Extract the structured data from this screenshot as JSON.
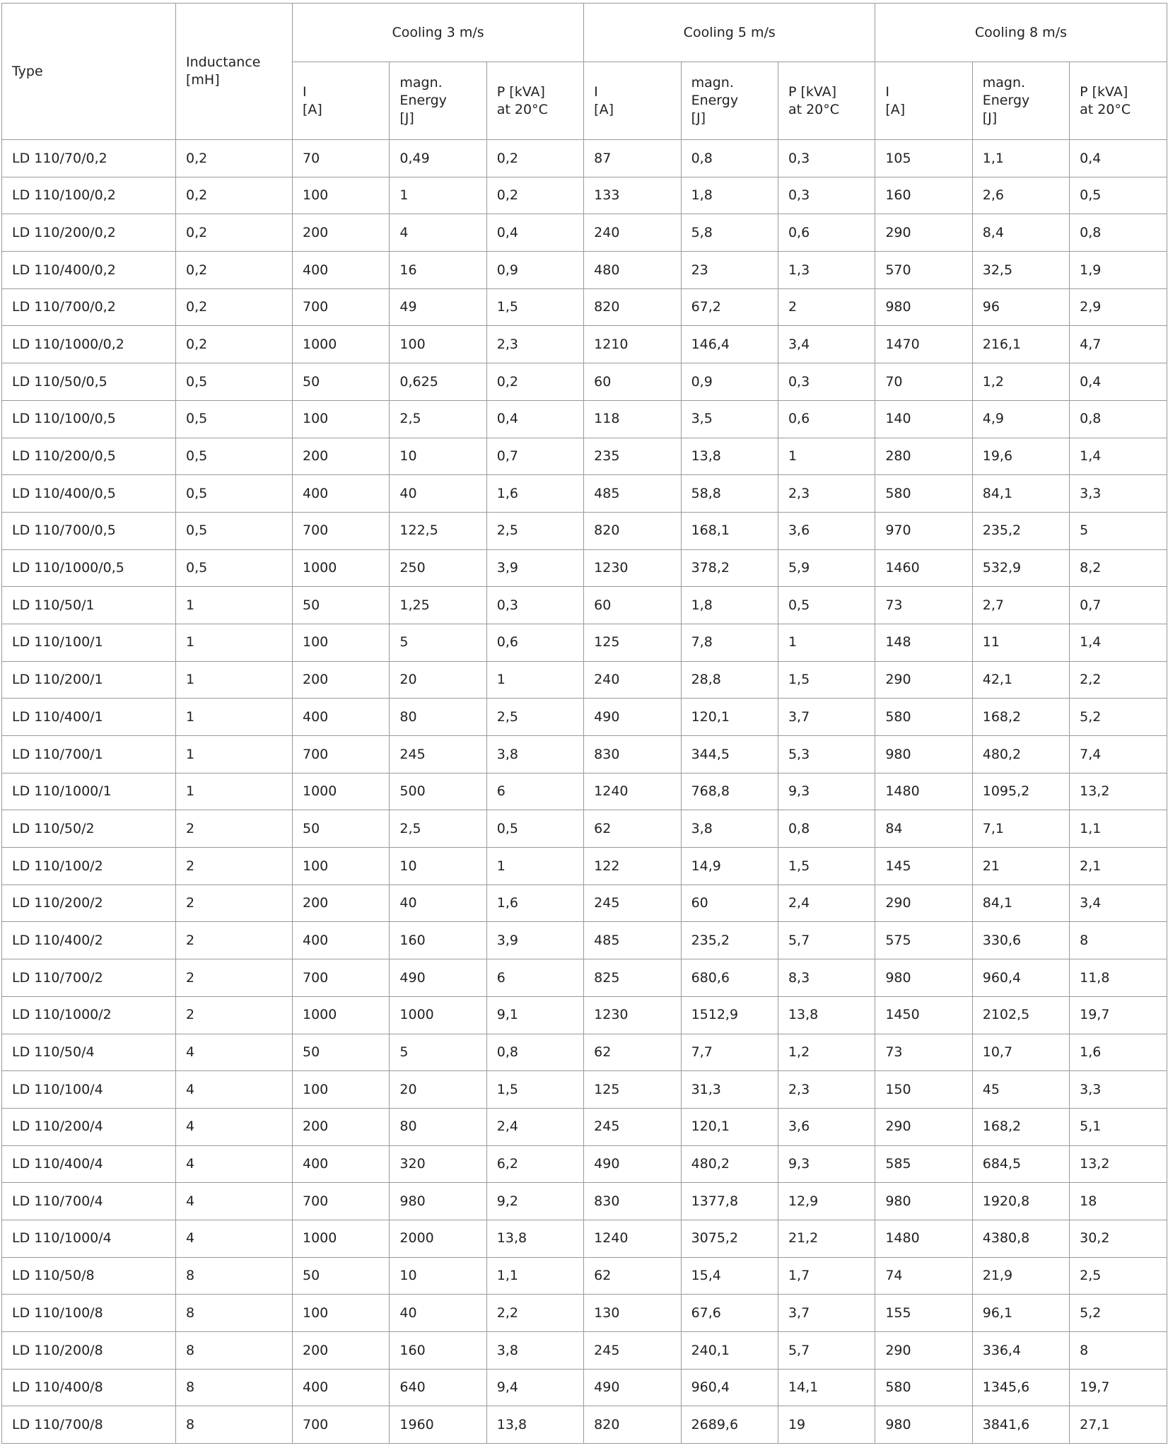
{
  "table": {
    "header": {
      "type": "Type",
      "inductance": "Inductance\n[mH]",
      "groups": [
        {
          "title": "Cooling 3 m/s",
          "columns": [
            "I\n[A]",
            "magn.\nEnergy\n[J]",
            "P [kVA]\nat 20°C"
          ]
        },
        {
          "title": "Cooling 5 m/s",
          "columns": [
            "I\n[A]",
            "magn.\nEnergy\n[J]",
            "P [kVA]\nat 20°C"
          ]
        },
        {
          "title": "Cooling 8 m/s",
          "columns": [
            "I\n[A]",
            "magn.\nEnergy\n[J]",
            "P [kVA]\nat 20°C"
          ]
        }
      ]
    },
    "rows": [
      [
        "LD 110/70/0,2",
        "0,2",
        "70",
        "0,49",
        "0,2",
        "87",
        "0,8",
        "0,3",
        "105",
        "1,1",
        "0,4"
      ],
      [
        "LD 110/100/0,2",
        "0,2",
        "100",
        "1",
        "0,2",
        "133",
        "1,8",
        "0,3",
        "160",
        "2,6",
        "0,5"
      ],
      [
        "LD 110/200/0,2",
        "0,2",
        "200",
        "4",
        "0,4",
        "240",
        "5,8",
        "0,6",
        "290",
        "8,4",
        "0,8"
      ],
      [
        "LD 110/400/0,2",
        "0,2",
        "400",
        "16",
        "0,9",
        "480",
        "23",
        "1,3",
        "570",
        "32,5",
        "1,9"
      ],
      [
        "LD 110/700/0,2",
        "0,2",
        "700",
        "49",
        "1,5",
        "820",
        "67,2",
        "2",
        "980",
        "96",
        "2,9"
      ],
      [
        "LD 110/1000/0,2",
        "0,2",
        "1000",
        "100",
        "2,3",
        "1210",
        "146,4",
        "3,4",
        "1470",
        "216,1",
        "4,7"
      ],
      [
        "LD 110/50/0,5",
        "0,5",
        "50",
        "0,625",
        "0,2",
        "60",
        "0,9",
        "0,3",
        "70",
        "1,2",
        "0,4"
      ],
      [
        "LD 110/100/0,5",
        "0,5",
        "100",
        "2,5",
        "0,4",
        "118",
        "3,5",
        "0,6",
        "140",
        "4,9",
        "0,8"
      ],
      [
        "LD 110/200/0,5",
        "0,5",
        "200",
        "10",
        "0,7",
        "235",
        "13,8",
        "1",
        "280",
        "19,6",
        "1,4"
      ],
      [
        "LD 110/400/0,5",
        "0,5",
        "400",
        "40",
        "1,6",
        "485",
        "58,8",
        "2,3",
        "580",
        "84,1",
        "3,3"
      ],
      [
        "LD 110/700/0,5",
        "0,5",
        "700",
        "122,5",
        "2,5",
        "820",
        "168,1",
        "3,6",
        "970",
        "235,2",
        "5"
      ],
      [
        "LD 110/1000/0,5",
        "0,5",
        "1000",
        "250",
        "3,9",
        "1230",
        "378,2",
        "5,9",
        "1460",
        "532,9",
        "8,2"
      ],
      [
        "LD 110/50/1",
        "1",
        "50",
        "1,25",
        "0,3",
        "60",
        "1,8",
        "0,5",
        "73",
        "2,7",
        "0,7"
      ],
      [
        "LD 110/100/1",
        "1",
        "100",
        "5",
        "0,6",
        "125",
        "7,8",
        "1",
        "148",
        "11",
        "1,4"
      ],
      [
        "LD 110/200/1",
        "1",
        "200",
        "20",
        "1",
        "240",
        "28,8",
        "1,5",
        "290",
        "42,1",
        "2,2"
      ],
      [
        "LD 110/400/1",
        "1",
        "400",
        "80",
        "2,5",
        "490",
        "120,1",
        "3,7",
        "580",
        "168,2",
        "5,2"
      ],
      [
        "LD 110/700/1",
        "1",
        "700",
        "245",
        "3,8",
        "830",
        "344,5",
        "5,3",
        "980",
        "480,2",
        "7,4"
      ],
      [
        "LD 110/1000/1",
        "1",
        "1000",
        "500",
        "6",
        "1240",
        "768,8",
        "9,3",
        "1480",
        "1095,2",
        "13,2"
      ],
      [
        "LD 110/50/2",
        "2",
        "50",
        "2,5",
        "0,5",
        "62",
        "3,8",
        "0,8",
        "84",
        "7,1",
        "1,1"
      ],
      [
        "LD 110/100/2",
        "2",
        "100",
        "10",
        "1",
        "122",
        "14,9",
        "1,5",
        "145",
        "21",
        "2,1"
      ],
      [
        "LD 110/200/2",
        "2",
        "200",
        "40",
        "1,6",
        "245",
        "60",
        "2,4",
        "290",
        "84,1",
        "3,4"
      ],
      [
        "LD 110/400/2",
        "2",
        "400",
        "160",
        "3,9",
        "485",
        "235,2",
        "5,7",
        "575",
        "330,6",
        "8"
      ],
      [
        "LD 110/700/2",
        "2",
        "700",
        "490",
        "6",
        "825",
        "680,6",
        "8,3",
        "980",
        "960,4",
        "11,8"
      ],
      [
        "LD 110/1000/2",
        "2",
        "1000",
        "1000",
        "9,1",
        "1230",
        "1512,9",
        "13,8",
        "1450",
        "2102,5",
        "19,7"
      ],
      [
        "LD 110/50/4",
        "4",
        "50",
        "5",
        "0,8",
        "62",
        "7,7",
        "1,2",
        "73",
        "10,7",
        "1,6"
      ],
      [
        "LD 110/100/4",
        "4",
        "100",
        "20",
        "1,5",
        "125",
        "31,3",
        "2,3",
        "150",
        "45",
        "3,3"
      ],
      [
        "LD 110/200/4",
        "4",
        "200",
        "80",
        "2,4",
        "245",
        "120,1",
        "3,6",
        "290",
        "168,2",
        "5,1"
      ],
      [
        "LD 110/400/4",
        "4",
        "400",
        "320",
        "6,2",
        "490",
        "480,2",
        "9,3",
        "585",
        "684,5",
        "13,2"
      ],
      [
        "LD 110/700/4",
        "4",
        "700",
        "980",
        "9,2",
        "830",
        "1377,8",
        "12,9",
        "980",
        "1920,8",
        "18"
      ],
      [
        "LD 110/1000/4",
        "4",
        "1000",
        "2000",
        "13,8",
        "1240",
        "3075,2",
        "21,2",
        "1480",
        "4380,8",
        "30,2"
      ],
      [
        "LD 110/50/8",
        "8",
        "50",
        "10",
        "1,1",
        "62",
        "15,4",
        "1,7",
        "74",
        "21,9",
        "2,5"
      ],
      [
        "LD 110/100/8",
        "8",
        "100",
        "40",
        "2,2",
        "130",
        "67,6",
        "3,7",
        "155",
        "96,1",
        "5,2"
      ],
      [
        "LD 110/200/8",
        "8",
        "200",
        "160",
        "3,8",
        "245",
        "240,1",
        "5,7",
        "290",
        "336,4",
        "8"
      ],
      [
        "LD 110/400/8",
        "8",
        "400",
        "640",
        "9,4",
        "490",
        "960,4",
        "14,1",
        "580",
        "1345,6",
        "19,7"
      ],
      [
        "LD 110/700/8",
        "8",
        "700",
        "1960",
        "13,8",
        "820",
        "2689,6",
        "19",
        "980",
        "3841,6",
        "27,1"
      ]
    ]
  }
}
